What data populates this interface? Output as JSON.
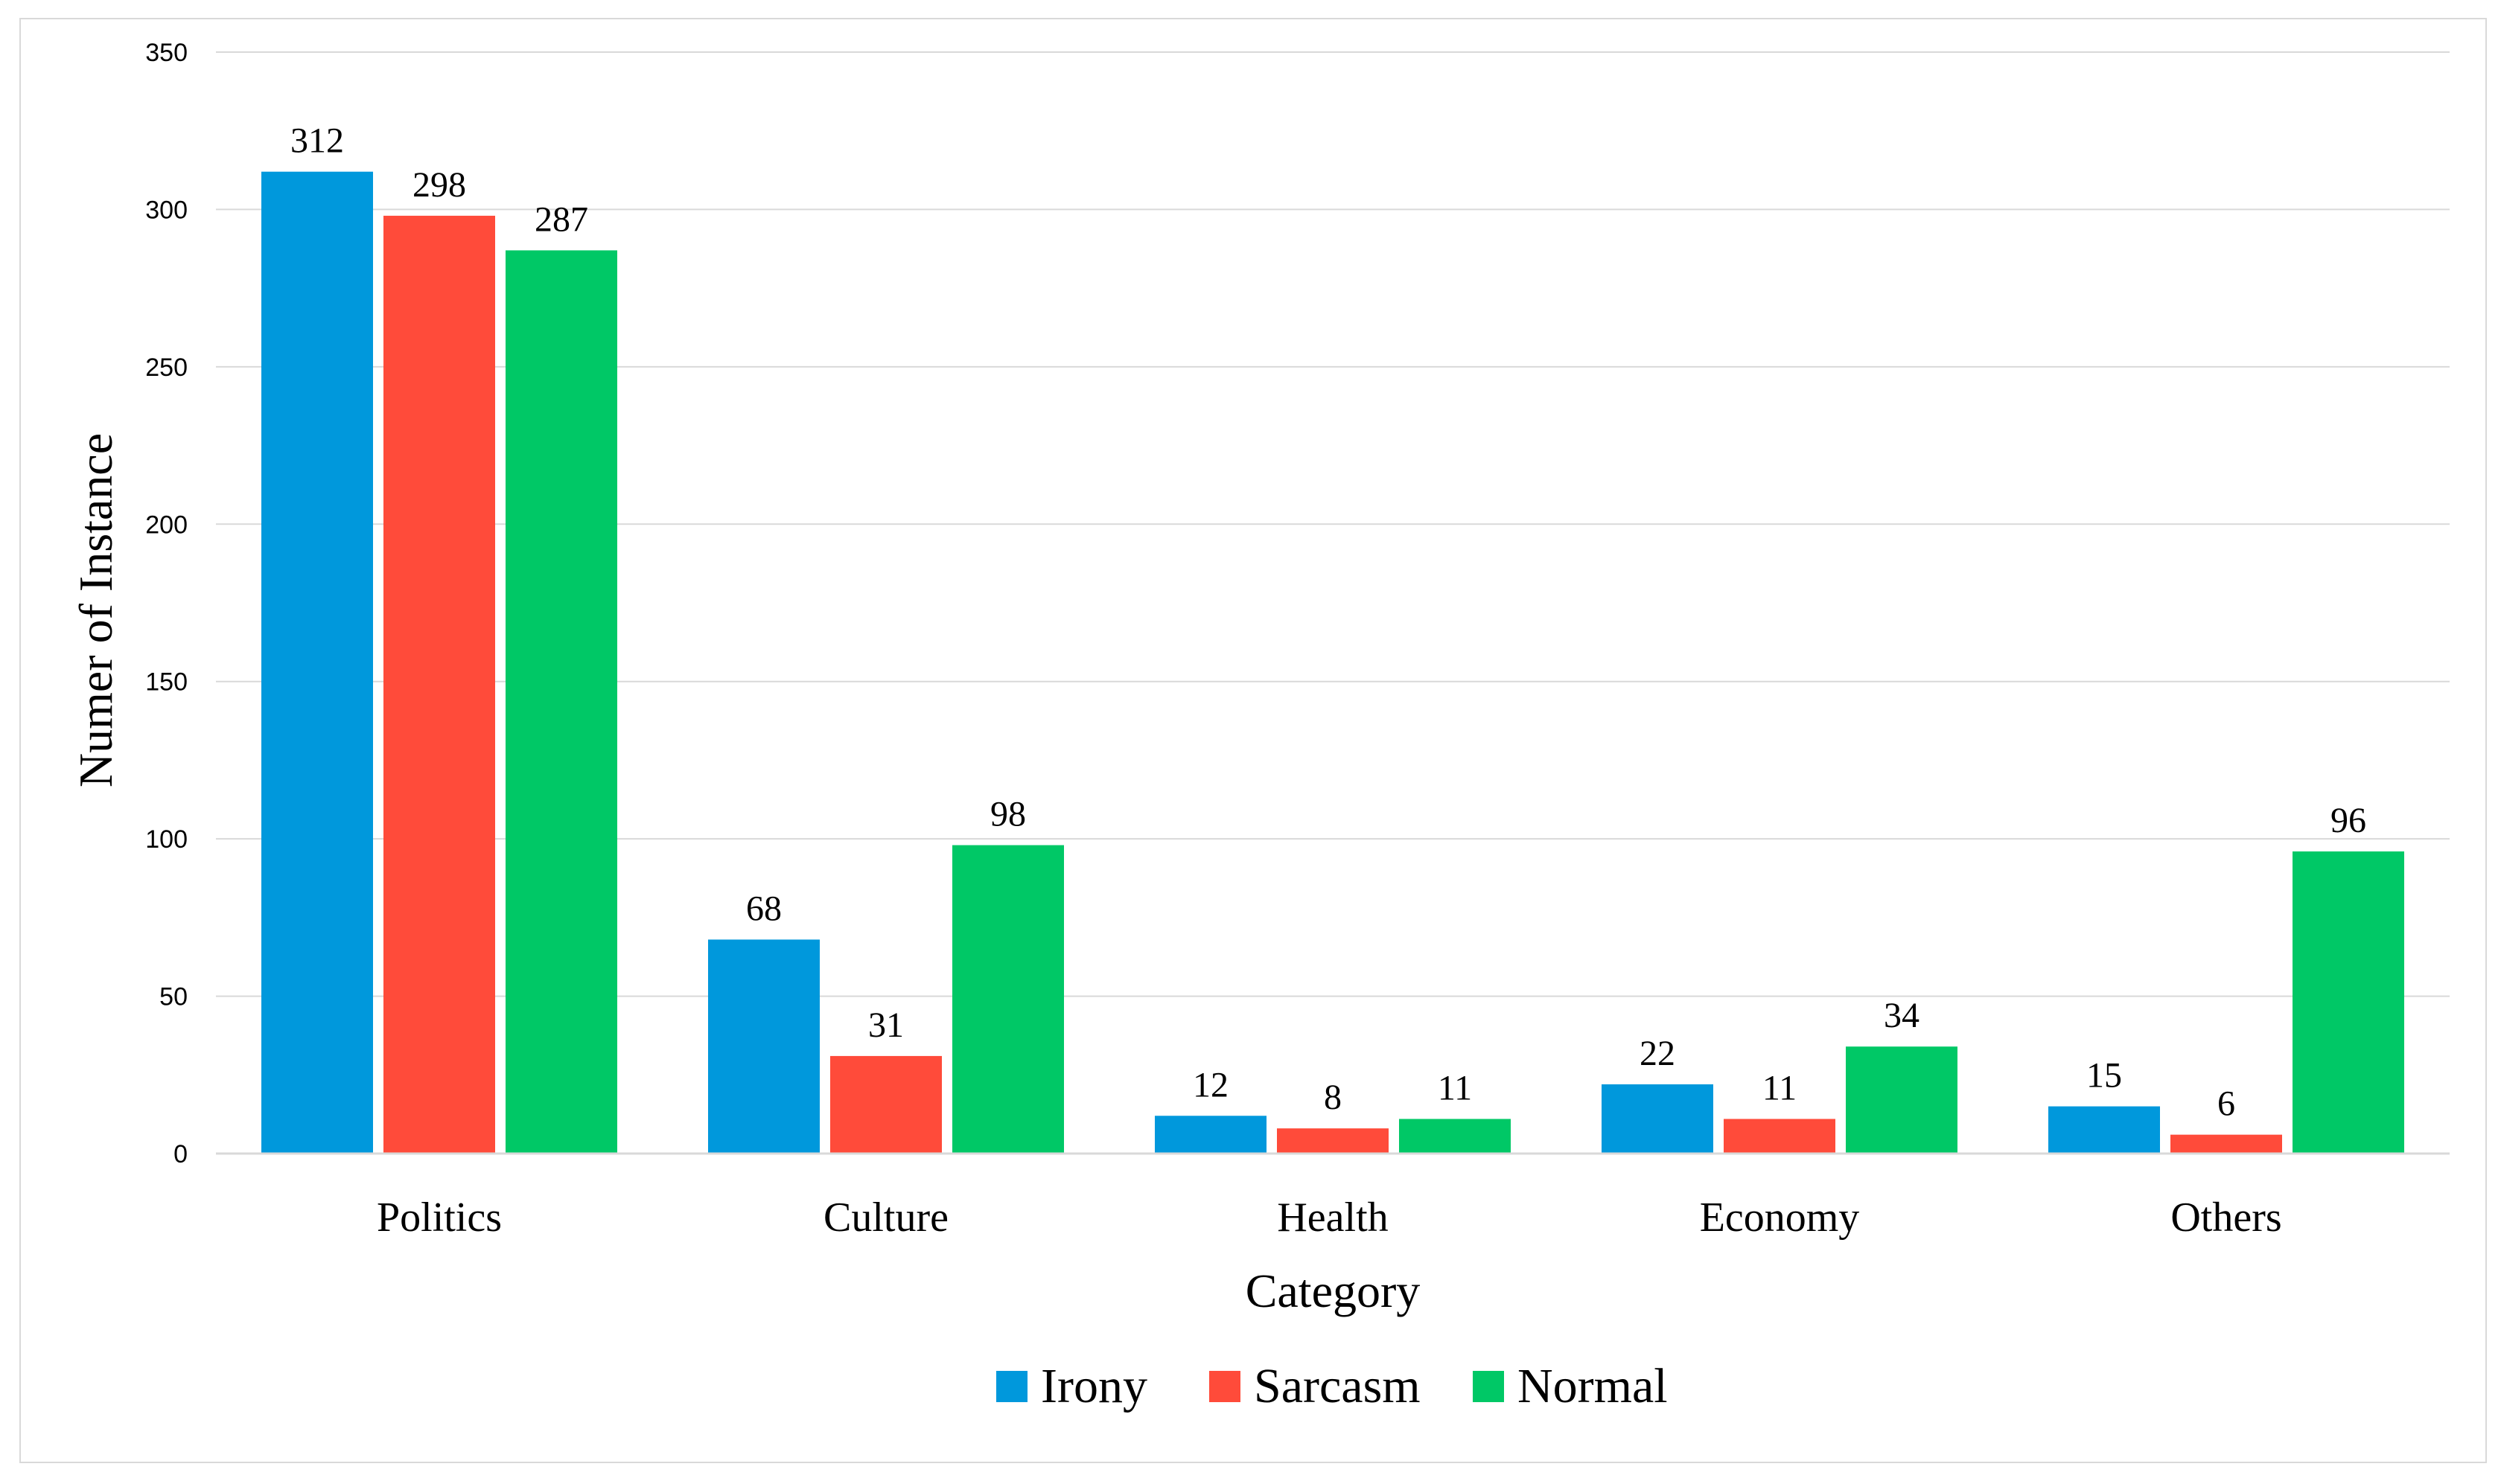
{
  "chart_data": {
    "type": "bar",
    "title": "",
    "xlabel": "Category",
    "ylabel": "Numer of Instance",
    "categories": [
      "Politics",
      "Culture",
      "Health",
      "Economy",
      "Others"
    ],
    "series": [
      {
        "name": "Irony",
        "color": "#0098DC",
        "values": [
          312,
          68,
          12,
          22,
          15
        ]
      },
      {
        "name": "Sarcasm",
        "color": "#FF4B3A",
        "values": [
          298,
          31,
          8,
          11,
          6
        ]
      },
      {
        "name": "Normal",
        "color": "#00C866",
        "values": [
          287,
          98,
          11,
          34,
          96
        ]
      }
    ],
    "ylim": [
      0,
      350
    ],
    "yticks": [
      "0",
      "50",
      "100",
      "150",
      "200",
      "250",
      "300",
      "350"
    ],
    "grid": true,
    "legend": "bottom-center",
    "data_labels": true
  }
}
